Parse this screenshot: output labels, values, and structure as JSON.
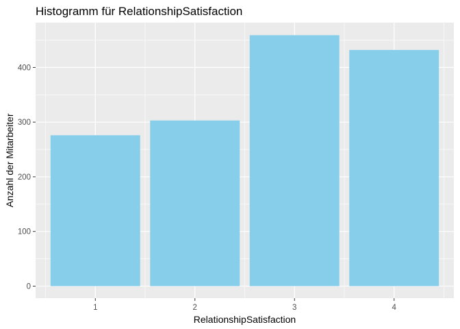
{
  "chart_data": {
    "type": "bar",
    "title": "Histogramm für RelationshipSatisfaction",
    "xlabel": "RelationshipSatisfaction",
    "ylabel": "Anzahl der Mitarbeiter",
    "categories": [
      "1",
      "2",
      "3",
      "4"
    ],
    "values": [
      276,
      303,
      459,
      432
    ],
    "ylim": [
      -22,
      482
    ],
    "yticks": [
      0,
      100,
      200,
      300,
      400
    ],
    "grid": true,
    "bar_color": "#87CEEB",
    "panel_color": "#EBEBEB",
    "gridline_color": "#FFFFFF"
  }
}
